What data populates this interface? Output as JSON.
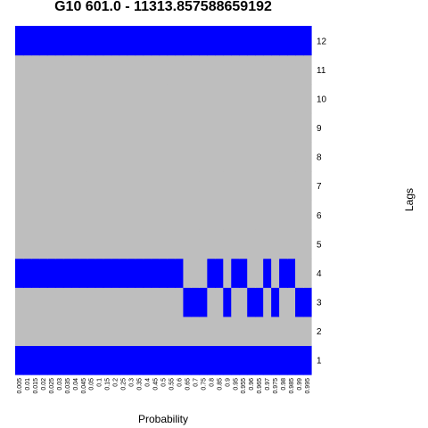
{
  "chart_data": {
    "type": "heatmap",
    "title": "G10 601.0 - 11313.857588659192",
    "xlabel": "Probability",
    "ylabel": "Lags",
    "x": [
      "0.005",
      "0.01",
      "0.015",
      "0.02",
      "0.025",
      "0.03",
      "0.035",
      "0.04",
      "0.045",
      "0.05",
      "0.1",
      "0.15",
      "0.2",
      "0.25",
      "0.3",
      "0.35",
      "0.4",
      "0.45",
      "0.5",
      "0.55",
      "0.6",
      "0.65",
      "0.7",
      "0.75",
      "0.8",
      "0.85",
      "0.9",
      "0.95",
      "0.955",
      "0.96",
      "0.965",
      "0.97",
      "0.975",
      "0.98",
      "0.985",
      "0.99",
      "0.995"
    ],
    "y": [
      "1",
      "2",
      "3",
      "4",
      "5",
      "6",
      "7",
      "8",
      "9",
      "10",
      "11",
      "12"
    ],
    "colors": {
      "selected": "#0000ff",
      "unselected": "#bebebe"
    },
    "selected": {
      "1": [
        1,
        1,
        1,
        1,
        1,
        1,
        1,
        1,
        1,
        1,
        1,
        1,
        1,
        1,
        1,
        1,
        1,
        1,
        1,
        1,
        1,
        1,
        1,
        1,
        1,
        1,
        1,
        1,
        1,
        1,
        1,
        1,
        1,
        1,
        1,
        1,
        1
      ],
      "2": [
        0,
        0,
        0,
        0,
        0,
        0,
        0,
        0,
        0,
        0,
        0,
        0,
        0,
        0,
        0,
        0,
        0,
        0,
        0,
        0,
        0,
        0,
        0,
        0,
        0,
        0,
        0,
        0,
        0,
        0,
        0,
        0,
        0,
        0,
        0,
        0,
        0
      ],
      "3": [
        0,
        0,
        0,
        0,
        0,
        0,
        0,
        0,
        0,
        0,
        0,
        0,
        0,
        0,
        0,
        0,
        0,
        0,
        0,
        0,
        0,
        1,
        1,
        1,
        0,
        0,
        1,
        0,
        0,
        1,
        1,
        0,
        1,
        0,
        0,
        1,
        1
      ],
      "4": [
        1,
        1,
        1,
        1,
        1,
        1,
        1,
        1,
        1,
        1,
        1,
        1,
        1,
        1,
        1,
        1,
        1,
        1,
        1,
        1,
        1,
        0,
        0,
        0,
        1,
        1,
        0,
        1,
        1,
        0,
        0,
        1,
        0,
        1,
        1,
        0,
        0
      ],
      "5": [
        0,
        0,
        0,
        0,
        0,
        0,
        0,
        0,
        0,
        0,
        0,
        0,
        0,
        0,
        0,
        0,
        0,
        0,
        0,
        0,
        0,
        0,
        0,
        0,
        0,
        0,
        0,
        0,
        0,
        0,
        0,
        0,
        0,
        0,
        0,
        0,
        0
      ],
      "6": [
        0,
        0,
        0,
        0,
        0,
        0,
        0,
        0,
        0,
        0,
        0,
        0,
        0,
        0,
        0,
        0,
        0,
        0,
        0,
        0,
        0,
        0,
        0,
        0,
        0,
        0,
        0,
        0,
        0,
        0,
        0,
        0,
        0,
        0,
        0,
        0,
        0
      ],
      "7": [
        0,
        0,
        0,
        0,
        0,
        0,
        0,
        0,
        0,
        0,
        0,
        0,
        0,
        0,
        0,
        0,
        0,
        0,
        0,
        0,
        0,
        0,
        0,
        0,
        0,
        0,
        0,
        0,
        0,
        0,
        0,
        0,
        0,
        0,
        0,
        0,
        0
      ],
      "8": [
        0,
        0,
        0,
        0,
        0,
        0,
        0,
        0,
        0,
        0,
        0,
        0,
        0,
        0,
        0,
        0,
        0,
        0,
        0,
        0,
        0,
        0,
        0,
        0,
        0,
        0,
        0,
        0,
        0,
        0,
        0,
        0,
        0,
        0,
        0,
        0,
        0
      ],
      "9": [
        0,
        0,
        0,
        0,
        0,
        0,
        0,
        0,
        0,
        0,
        0,
        0,
        0,
        0,
        0,
        0,
        0,
        0,
        0,
        0,
        0,
        0,
        0,
        0,
        0,
        0,
        0,
        0,
        0,
        0,
        0,
        0,
        0,
        0,
        0,
        0,
        0
      ],
      "10": [
        0,
        0,
        0,
        0,
        0,
        0,
        0,
        0,
        0,
        0,
        0,
        0,
        0,
        0,
        0,
        0,
        0,
        0,
        0,
        0,
        0,
        0,
        0,
        0,
        0,
        0,
        0,
        0,
        0,
        0,
        0,
        0,
        0,
        0,
        0,
        0,
        0
      ],
      "11": [
        0,
        0,
        0,
        0,
        0,
        0,
        0,
        0,
        0,
        0,
        0,
        0,
        0,
        0,
        0,
        0,
        0,
        0,
        0,
        0,
        0,
        0,
        0,
        0,
        0,
        0,
        0,
        0,
        0,
        0,
        0,
        0,
        0,
        0,
        0,
        0,
        0
      ],
      "12": [
        1,
        1,
        1,
        1,
        1,
        1,
        1,
        1,
        1,
        1,
        1,
        1,
        1,
        1,
        1,
        1,
        1,
        1,
        1,
        1,
        1,
        1,
        1,
        1,
        1,
        1,
        1,
        1,
        1,
        1,
        1,
        1,
        1,
        1,
        1,
        1,
        1
      ]
    }
  }
}
